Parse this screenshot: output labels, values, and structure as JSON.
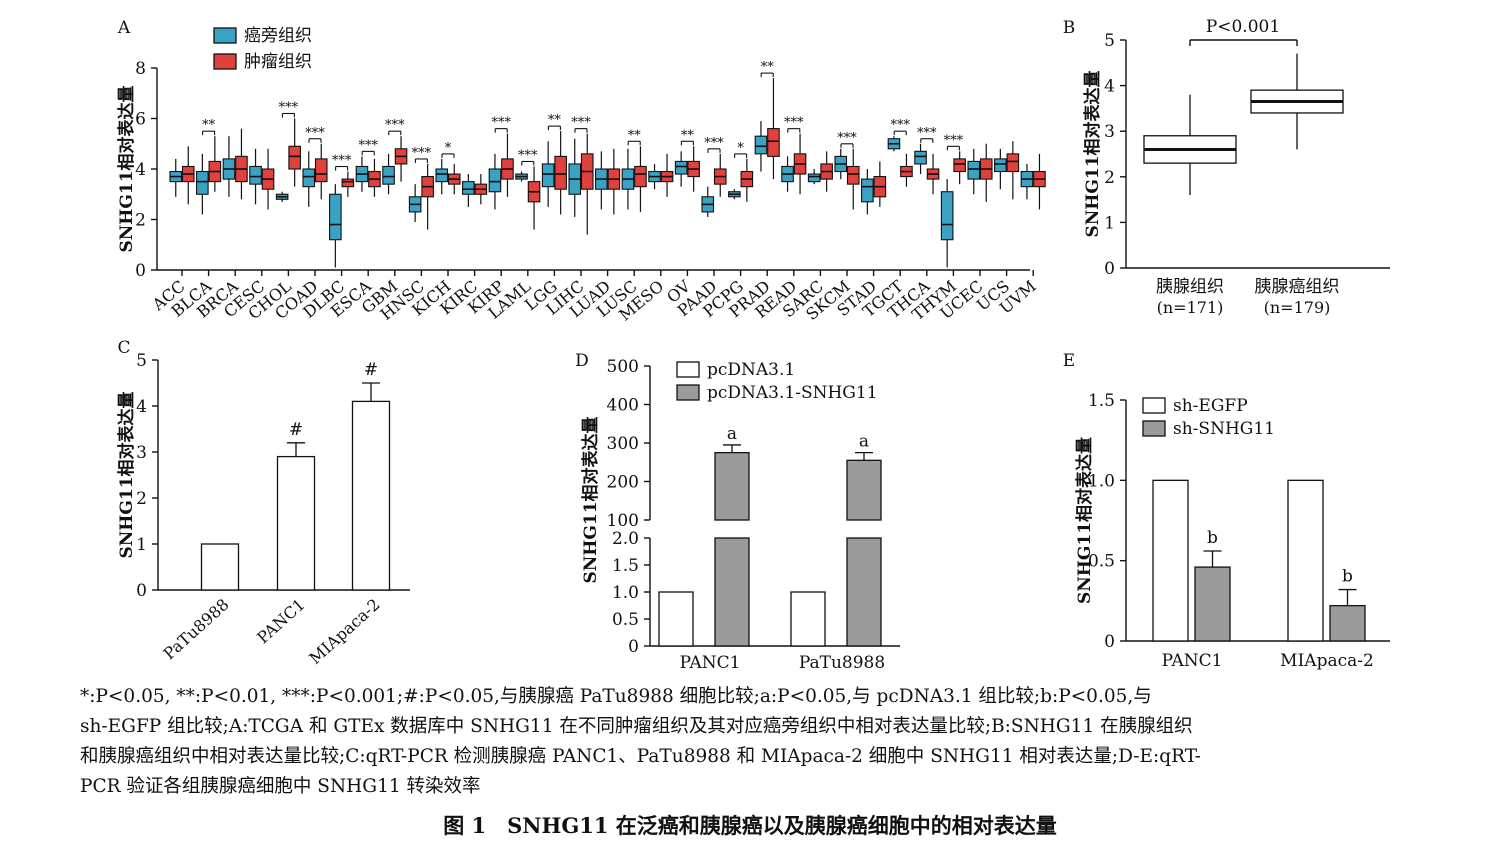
{
  "colors": {
    "normal": "#3aa3c3",
    "tumor": "#e0413d",
    "ctrl": "#ffffff",
    "treat": "#9b9b9b",
    "ink": "#111111"
  },
  "chart_data": [
    {
      "panel": "A",
      "type": "box",
      "ylabel": "SNHG11相对表达量",
      "ylim": [
        0,
        8
      ],
      "yticks": [
        "0",
        "2",
        "4",
        "6",
        "8"
      ],
      "legend": [
        "癌旁组织",
        "肿瘤组织"
      ],
      "categories": [
        "ACC",
        "BLCA",
        "BRCA",
        "CESC",
        "CHOL",
        "COAD",
        "DLBC",
        "ESCA",
        "GBM",
        "HNSC",
        "KICH",
        "KIRC",
        "KIRP",
        "LAML",
        "LGG",
        "LIHC",
        "LUAD",
        "LUSC",
        "MESO",
        "OV",
        "PAAD",
        "PCPG",
        "PRAD",
        "READ",
        "SARC",
        "SKCM",
        "STAD",
        "TGCT",
        "THCA",
        "THYM",
        "UCEC",
        "UCS",
        "UVM"
      ],
      "significance": [
        "",
        "**",
        "",
        "",
        "***",
        "***",
        "***",
        "***",
        "***",
        "***",
        "*",
        "",
        "***",
        "***",
        "**",
        "***",
        "",
        "**",
        "",
        "**",
        "***",
        "*",
        "**",
        "***",
        "",
        "***",
        "",
        "***",
        "***",
        "***",
        "",
        "",
        ""
      ],
      "series": [
        {
          "name": "癌旁组织",
          "boxes": [
            [
              2.9,
              3.5,
              3.7,
              3.9,
              4.4
            ],
            [
              2.2,
              3.0,
              3.5,
              3.9,
              4.6
            ],
            [
              2.9,
              3.6,
              4.0,
              4.4,
              5.3
            ],
            [
              2.6,
              3.4,
              3.7,
              4.1,
              4.8
            ],
            [
              2.7,
              2.8,
              2.9,
              3.0,
              3.1
            ],
            [
              2.5,
              3.3,
              3.7,
              4.0,
              4.7
            ],
            [
              0.1,
              1.2,
              1.8,
              3.0,
              3.4
            ],
            [
              3.1,
              3.5,
              3.8,
              4.1,
              4.5
            ],
            [
              3.0,
              3.4,
              3.7,
              4.1,
              4.6
            ],
            [
              1.9,
              2.3,
              2.6,
              2.9,
              3.4
            ],
            [
              3.0,
              3.5,
              3.8,
              4.0,
              4.4
            ],
            [
              2.5,
              3.0,
              3.2,
              3.5,
              3.8
            ],
            [
              2.4,
              3.1,
              3.5,
              4.0,
              4.6
            ],
            [
              3.5,
              3.6,
              3.7,
              3.8,
              3.9
            ],
            [
              2.5,
              3.3,
              3.8,
              4.2,
              5.1
            ],
            [
              2.1,
              3.0,
              3.6,
              4.2,
              5.2
            ],
            [
              2.4,
              3.2,
              3.6,
              4.0,
              4.7
            ],
            [
              2.4,
              3.2,
              3.6,
              4.0,
              4.8
            ],
            [
              3.2,
              3.5,
              3.7,
              3.9,
              4.2
            ],
            [
              3.3,
              3.8,
              4.1,
              4.3,
              4.7
            ],
            [
              2.1,
              2.3,
              2.6,
              2.9,
              3.3
            ],
            [
              2.8,
              2.9,
              3.0,
              3.1,
              3.2
            ],
            [
              3.9,
              4.6,
              4.9,
              5.3,
              5.9
            ],
            [
              3.1,
              3.5,
              3.8,
              4.1,
              4.5
            ],
            [
              3.4,
              3.5,
              3.7,
              3.8,
              4.0
            ],
            [
              3.6,
              3.9,
              4.2,
              4.5,
              4.8
            ],
            [
              2.2,
              2.7,
              3.3,
              3.6,
              4.0
            ],
            [
              4.7,
              4.8,
              5.0,
              5.2,
              5.3
            ],
            [
              3.8,
              4.2,
              4.5,
              4.7,
              5.0
            ],
            [
              0.1,
              1.2,
              1.8,
              3.1,
              3.6
            ],
            [
              3.0,
              3.6,
              4.0,
              4.3,
              4.8
            ],
            [
              3.2,
              3.9,
              4.2,
              4.4,
              4.8
            ],
            [
              2.8,
              3.3,
              3.6,
              3.9,
              4.2
            ]
          ]
        },
        {
          "name": "肿瘤组织",
          "boxes": [
            [
              2.6,
              3.5,
              3.8,
              4.1,
              4.9
            ],
            [
              3.1,
              3.5,
              3.9,
              4.3,
              5.3
            ],
            [
              2.8,
              3.5,
              4.0,
              4.5,
              5.6
            ],
            [
              2.4,
              3.2,
              3.6,
              4.0,
              4.8
            ],
            [
              3.3,
              4.0,
              4.5,
              4.9,
              6.0
            ],
            [
              2.8,
              3.5,
              3.8,
              4.4,
              5.0
            ],
            [
              2.9,
              3.3,
              3.5,
              3.6,
              3.9
            ],
            [
              2.9,
              3.3,
              3.6,
              3.9,
              4.4
            ],
            [
              3.5,
              4.2,
              4.5,
              4.8,
              5.3
            ],
            [
              1.6,
              2.9,
              3.3,
              3.7,
              4.2
            ],
            [
              3.0,
              3.4,
              3.6,
              3.8,
              4.2
            ],
            [
              2.6,
              3.0,
              3.2,
              3.4,
              3.8
            ],
            [
              2.9,
              3.6,
              4.0,
              4.4,
              5.4
            ],
            [
              1.6,
              2.7,
              3.1,
              3.5,
              4.1
            ],
            [
              2.2,
              3.2,
              3.8,
              4.5,
              5.5
            ],
            [
              1.4,
              3.2,
              3.9,
              4.6,
              5.4
            ],
            [
              2.2,
              3.2,
              3.6,
              4.0,
              4.8
            ],
            [
              2.3,
              3.3,
              3.8,
              4.1,
              4.9
            ],
            [
              2.9,
              3.5,
              3.7,
              3.9,
              4.6
            ],
            [
              3.1,
              3.7,
              4.0,
              4.3,
              4.9
            ],
            [
              2.9,
              3.4,
              3.7,
              4.0,
              4.6
            ],
            [
              2.7,
              3.3,
              3.6,
              3.9,
              4.4
            ],
            [
              3.6,
              4.5,
              5.1,
              5.6,
              7.6
            ],
            [
              3.0,
              3.8,
              4.2,
              4.6,
              5.4
            ],
            [
              3.1,
              3.6,
              3.9,
              4.2,
              4.7
            ],
            [
              2.4,
              3.4,
              3.8,
              4.1,
              4.8
            ],
            [
              2.5,
              2.9,
              3.3,
              3.7,
              4.3
            ],
            [
              3.3,
              3.7,
              3.9,
              4.1,
              4.6
            ],
            [
              3.0,
              3.6,
              3.8,
              4.0,
              4.6
            ],
            [
              3.4,
              3.9,
              4.2,
              4.4,
              4.7
            ],
            [
              2.7,
              3.6,
              4.0,
              4.4,
              5.0
            ],
            [
              2.8,
              3.9,
              4.3,
              4.6,
              5.1
            ],
            [
              2.4,
              3.3,
              3.6,
              3.9,
              4.6
            ]
          ]
        }
      ]
    },
    {
      "panel": "B",
      "type": "box",
      "ylabel": "SNHG11相对表达量",
      "ylim": [
        0,
        5
      ],
      "yticks": [
        "0",
        "1",
        "2",
        "3",
        "4",
        "5"
      ],
      "categories": [
        "胰腺组织",
        "胰腺癌组织"
      ],
      "n": [
        "(n=171)",
        "(n=179)"
      ],
      "boxes": [
        [
          1.6,
          2.3,
          2.6,
          2.9,
          3.8
        ],
        [
          2.6,
          3.4,
          3.65,
          3.9,
          4.7
        ]
      ],
      "annotation": "P<0.001"
    },
    {
      "panel": "C",
      "type": "bar",
      "ylabel": "SNHG11相对表达量",
      "ylim": [
        0,
        5
      ],
      "yticks": [
        "0",
        "1",
        "2",
        "3",
        "4",
        "5"
      ],
      "categories": [
        "PaTu8988",
        "PANC1",
        "MIApaca-2"
      ],
      "values": [
        1.0,
        2.9,
        4.1
      ],
      "errors": [
        0,
        0.3,
        0.4
      ],
      "labels": [
        "",
        "#",
        "#"
      ]
    },
    {
      "panel": "D",
      "type": "bar",
      "ylabel": "SNHG11相对表达量",
      "yticks_low": [
        "0",
        "0.5",
        "1.0",
        "1.5",
        "2.0"
      ],
      "yticks_high": [
        "100",
        "200",
        "300",
        "400",
        "500"
      ],
      "categories": [
        "PANC1",
        "PaTu8988"
      ],
      "legend": [
        "pcDNA3.1",
        "pcDNA3.1-SNHG11"
      ],
      "series": [
        {
          "name": "pcDNA3.1",
          "values": [
            1.0,
            1.0
          ]
        },
        {
          "name": "pcDNA3.1-SNHG11",
          "values": [
            275,
            255
          ],
          "errors": [
            20,
            20
          ],
          "labels": [
            "a",
            "a"
          ]
        }
      ]
    },
    {
      "panel": "E",
      "type": "bar",
      "ylabel": "SNHG11相对表达量",
      "ylim": [
        0,
        1.5
      ],
      "yticks": [
        "0",
        "0.5",
        "1.0",
        "1.5"
      ],
      "categories": [
        "PANC1",
        "MIApaca-2"
      ],
      "legend": [
        "sh-EGFP",
        "sh-SNHG11"
      ],
      "series": [
        {
          "name": "sh-EGFP",
          "values": [
            1.0,
            1.0
          ]
        },
        {
          "name": "sh-SNHG11",
          "values": [
            0.46,
            0.22
          ],
          "errors": [
            0.1,
            0.1
          ],
          "labels": [
            "b",
            "b"
          ]
        }
      ]
    }
  ],
  "panel_letters": [
    "A",
    "B",
    "C",
    "D",
    "E"
  ],
  "footnote_lines": [
    "*:P<0.05, **:P<0.01, ***:P<0.001;#:P<0.05,与胰腺癌 PaTu8988 细胞比较;a:P<0.05,与 pcDNA3.1 组比较;b:P<0.05,与",
    "sh-EGFP 组比较;A:TCGA 和 GTEx 数据库中 SNHG11 在不同肿瘤组织及其对应癌旁组织中相对表达量比较;B:SNHG11 在胰腺组织",
    "和胰腺癌组织中相对表达量比较;C:qRT-PCR 检测胰腺癌 PANC1、PaTu8988 和 MIApaca-2 细胞中 SNHG11 相对表达量;D-E:qRT-",
    "PCR 验证各组胰腺癌细胞中 SNHG11 转染效率"
  ],
  "caption": "图 1　SNHG11 在泛癌和胰腺癌以及胰腺癌细胞中的相对表达量"
}
